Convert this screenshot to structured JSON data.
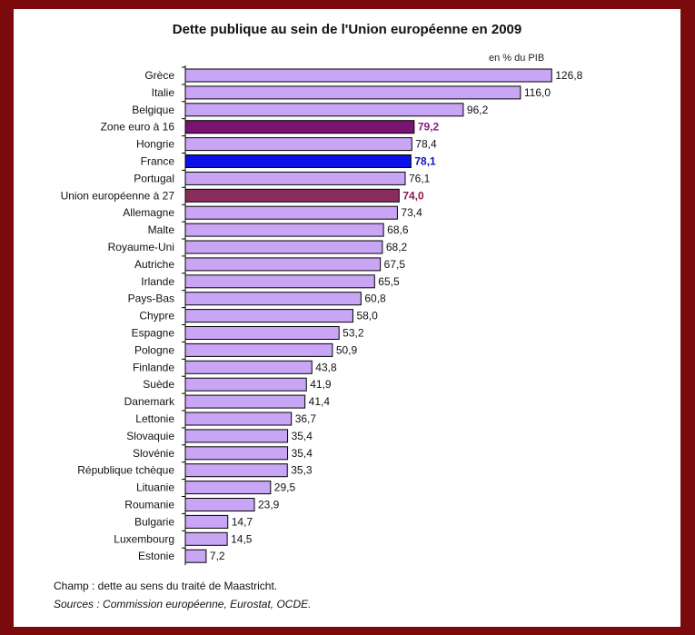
{
  "footer": {
    "note": "Champ : dette au sens du traité de Maastricht.",
    "sources": "Sources : Commission européenne, Eurostat, OCDE."
  },
  "chart_data": {
    "type": "bar",
    "orientation": "horizontal",
    "title": "Dette publique au sein de l'Union européenne en 2009",
    "unit_label": "en % du PIB",
    "xlabel": "",
    "ylabel": "",
    "xlim": [
      0,
      140
    ],
    "grid": false,
    "legend": "none",
    "default_color": "#c9a5f5",
    "categories": [
      "Grèce",
      "Italie",
      "Belgique",
      "Zone euro à 16",
      "Hongrie",
      "France",
      "Portugal",
      "Union européenne à 27",
      "Allemagne",
      "Malte",
      "Royaume-Uni",
      "Autriche",
      "Irlande",
      "Pays-Bas",
      "Chypre",
      "Espagne",
      "Pologne",
      "Finlande",
      "Suède",
      "Danemark",
      "Lettonie",
      "Slovaquie",
      "Slovénie",
      "République tchèque",
      "Lituanie",
      "Roumanie",
      "Bulgarie",
      "Luxembourg",
      "Estonie"
    ],
    "values": [
      126.8,
      116.0,
      96.2,
      79.2,
      78.4,
      78.1,
      76.1,
      74.0,
      73.4,
      68.6,
      68.2,
      67.5,
      65.5,
      60.8,
      58.0,
      53.2,
      50.9,
      43.8,
      41.9,
      41.4,
      36.7,
      35.4,
      35.4,
      35.3,
      29.5,
      23.9,
      14.7,
      14.5,
      7.2
    ],
    "value_labels": [
      "126,8",
      "116,0",
      "96,2",
      "79,2",
      "78,4",
      "78,1",
      "76,1",
      "74,0",
      "73,4",
      "68,6",
      "68,2",
      "67,5",
      "65,5",
      "60,8",
      "58,0",
      "53,2",
      "50,9",
      "43,8",
      "41,9",
      "41,4",
      "36,7",
      "35,4",
      "35,4",
      "35,3",
      "29,5",
      "23,9",
      "14,7",
      "14,5",
      "7,2"
    ],
    "highlights": {
      "Zone euro à 16": {
        "bar": "#7b1470",
        "label": "#8b1a7e",
        "bold": true
      },
      "France": {
        "bar": "#0a10e6",
        "label": "#0a10c8",
        "bold": true
      },
      "Union européenne à 27": {
        "bar": "#8a2d5e",
        "label": "#8b1a4e",
        "bold": true
      }
    }
  }
}
